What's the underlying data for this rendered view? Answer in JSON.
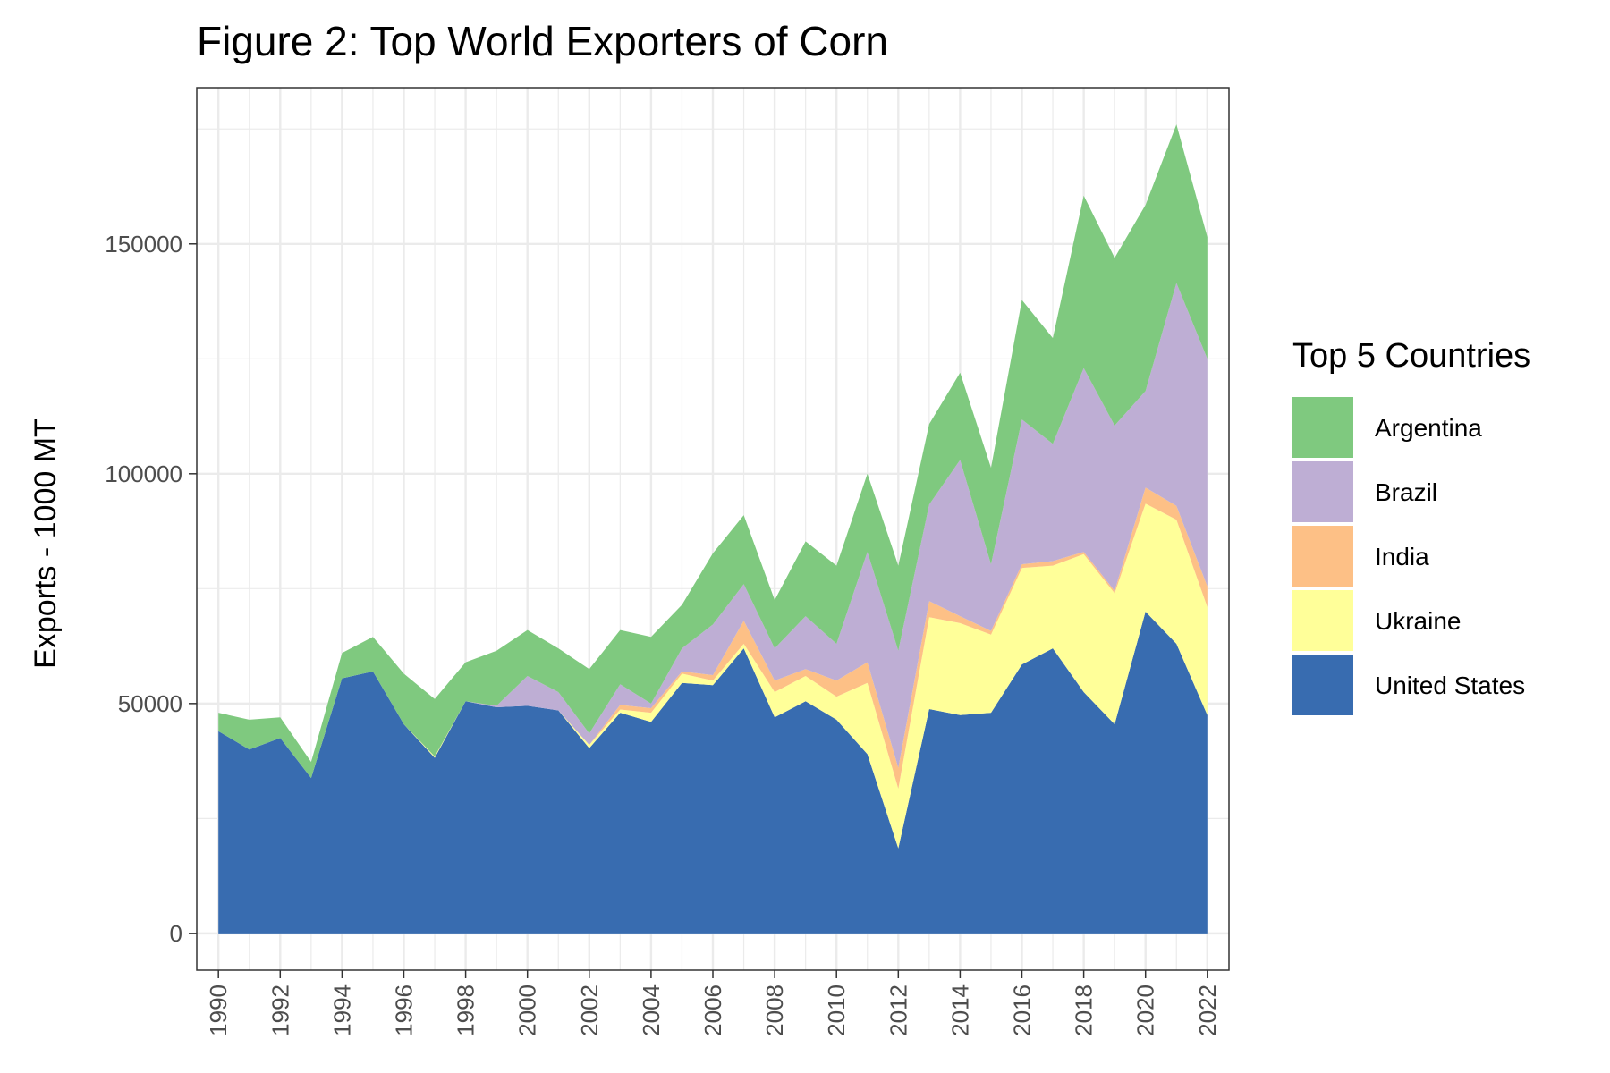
{
  "chart_data": {
    "type": "area",
    "stacked": true,
    "title": "Figure 2: Top World Exporters of Corn",
    "xlabel": "",
    "ylabel": "Exports - 1000 MT",
    "x": [
      1990,
      1991,
      1992,
      1993,
      1994,
      1995,
      1996,
      1997,
      1998,
      1999,
      2000,
      2001,
      2002,
      2003,
      2004,
      2005,
      2006,
      2007,
      2008,
      2009,
      2010,
      2011,
      2012,
      2013,
      2014,
      2015,
      2016,
      2017,
      2018,
      2019,
      2020,
      2021,
      2022
    ],
    "x_ticks": [
      "1990",
      "1992",
      "1994",
      "1996",
      "1998",
      "2000",
      "2002",
      "2004",
      "2006",
      "2008",
      "2010",
      "2012",
      "2014",
      "2016",
      "2018",
      "2020",
      "2022"
    ],
    "xlim": [
      1989.3,
      2022.7
    ],
    "ylim": [
      -8000,
      184000
    ],
    "y_ticks": [
      0,
      50000,
      100000,
      150000
    ],
    "y_tick_labels": [
      "0",
      "50000",
      "100000",
      "150000"
    ],
    "grid": true,
    "legend": {
      "title": "Top 5 Countries",
      "position": "right",
      "entries": [
        "Argentina",
        "Brazil",
        "India",
        "Ukraine",
        "United States"
      ]
    },
    "series": [
      {
        "name": "United States",
        "color": "#386CB0",
        "values": [
          44000,
          40000,
          42500,
          33800,
          55500,
          57000,
          45500,
          38200,
          50500,
          49200,
          49500,
          48500,
          40300,
          48000,
          46000,
          54500,
          54000,
          62000,
          47000,
          50500,
          46500,
          39000,
          18500,
          48800,
          47500,
          48000,
          58500,
          62000,
          52500,
          45500,
          70000,
          63000,
          47500
        ]
      },
      {
        "name": "Ukraine",
        "color": "#FFFF99",
        "values": [
          0,
          0,
          0,
          0,
          0,
          0,
          0,
          300,
          0,
          0,
          0,
          0,
          700,
          700,
          2000,
          2000,
          1000,
          1000,
          5500,
          5500,
          5000,
          15500,
          13000,
          20000,
          20000,
          17000,
          21000,
          18000,
          30000,
          28500,
          23500,
          27000,
          23500
        ]
      },
      {
        "name": "India",
        "color": "#FDC086",
        "values": [
          0,
          0,
          0,
          0,
          0,
          0,
          0,
          0,
          0,
          0,
          0,
          0,
          0,
          1000,
          1000,
          500,
          1200,
          5000,
          2500,
          1500,
          3500,
          4500,
          4500,
          3500,
          1500,
          800,
          800,
          1000,
          500,
          500,
          3500,
          3000,
          4500
        ]
      },
      {
        "name": "Brazil",
        "color": "#BEAED4",
        "values": [
          0,
          0,
          0,
          0,
          0,
          0,
          0,
          0,
          0,
          300,
          6500,
          4000,
          2500,
          4500,
          1000,
          5000,
          11000,
          8000,
          7000,
          11500,
          8000,
          24000,
          25500,
          21000,
          34000,
          14500,
          31500,
          25500,
          40000,
          36000,
          21000,
          48500,
          49500
        ]
      },
      {
        "name": "Argentina",
        "color": "#7FC97F",
        "values": [
          4000,
          6500,
          4500,
          3500,
          5500,
          7500,
          11000,
          12500,
          8500,
          12000,
          10000,
          9500,
          14000,
          11800,
          14500,
          9500,
          15500,
          15000,
          10500,
          16300,
          17000,
          17000,
          18500,
          17500,
          19000,
          21000,
          26000,
          23000,
          37500,
          36500,
          40500,
          34500,
          26500
        ]
      }
    ]
  }
}
